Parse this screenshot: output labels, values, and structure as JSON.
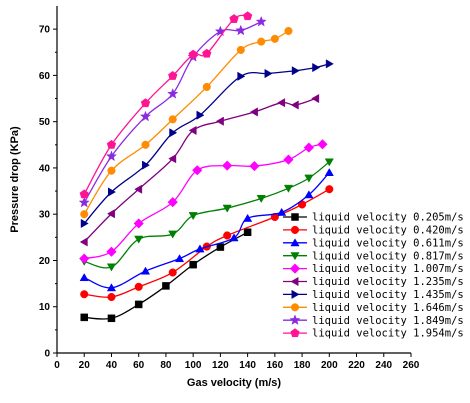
{
  "chart_data": {
    "type": "line",
    "xlabel": "Gas velocity (m/s)",
    "ylabel": "Pressure drop (KPa)",
    "xlim": [
      0,
      260
    ],
    "ylim": [
      0,
      75
    ],
    "xticks": [
      0,
      20,
      40,
      60,
      80,
      100,
      120,
      140,
      160,
      180,
      200,
      220,
      240,
      260
    ],
    "yticks": [
      0,
      10,
      20,
      30,
      40,
      50,
      60,
      70
    ],
    "grid": false,
    "legend_position": "bottom-right",
    "series": [
      {
        "name": "liquid velocity 0.205m/s",
        "marker": "square",
        "color": "#000000",
        "x": [
          20,
          40,
          60,
          80,
          100,
          120,
          140
        ],
        "y": [
          7.7,
          7.5,
          10.5,
          14.5,
          19.1,
          22.9,
          26.1
        ]
      },
      {
        "name": "liquid velocity 0.420m/s",
        "marker": "circle",
        "color": "#ff0000",
        "x": [
          20,
          40,
          60,
          85,
          110,
          125,
          160,
          180,
          200
        ],
        "y": [
          12.7,
          12.1,
          14.3,
          17.4,
          23.0,
          25.4,
          29.4,
          32.1,
          35.4
        ]
      },
      {
        "name": "liquid velocity 0.611m/s",
        "marker": "triangle-up",
        "color": "#0000ff",
        "x": [
          20,
          40,
          65,
          90,
          105,
          130,
          140,
          165,
          185,
          200
        ],
        "y": [
          16.3,
          14.1,
          17.7,
          20.4,
          22.5,
          24.9,
          29.1,
          30.4,
          34.2,
          39.0
        ]
      },
      {
        "name": "liquid velocity 0.817m/s",
        "marker": "triangle-down",
        "color": "#008000",
        "x": [
          20,
          40,
          60,
          85,
          100,
          125,
          150,
          170,
          185,
          200
        ],
        "y": [
          19.8,
          18.6,
          24.6,
          25.7,
          29.7,
          31.3,
          33.4,
          35.6,
          37.8,
          41.3
        ]
      },
      {
        "name": "liquid velocity 1.007m/s",
        "marker": "diamond",
        "color": "#ff00ff",
        "x": [
          20,
          40,
          60,
          85,
          103,
          125,
          145,
          170,
          185,
          195
        ],
        "y": [
          20.4,
          21.9,
          28.0,
          32.6,
          39.5,
          40.5,
          40.4,
          41.8,
          44.4,
          45.1
        ]
      },
      {
        "name": "liquid velocity 1.235m/s",
        "marker": "triangle-left",
        "color": "#800080",
        "x": [
          20,
          40,
          60,
          85,
          100,
          120,
          145,
          165,
          175,
          190
        ],
        "y": [
          24.0,
          30.1,
          35.4,
          42.0,
          48.1,
          50.1,
          52.1,
          54.1,
          53.6,
          55.0
        ]
      },
      {
        "name": "liquid velocity 1.435m/s",
        "marker": "triangle-right",
        "color": "#00008b",
        "x": [
          20,
          40,
          65,
          85,
          105,
          135,
          155,
          175,
          190,
          200
        ],
        "y": [
          28.0,
          34.8,
          40.6,
          47.6,
          51.4,
          59.8,
          60.4,
          61.0,
          61.7,
          62.5
        ]
      },
      {
        "name": "liquid velocity 1.646m/s",
        "marker": "circle",
        "color": "#ff8c00",
        "x": [
          20,
          40,
          65,
          85,
          110,
          135,
          150,
          160,
          170
        ],
        "y": [
          30.0,
          39.4,
          45.0,
          50.5,
          57.5,
          65.5,
          67.3,
          67.9,
          69.6
        ]
      },
      {
        "name": "liquid velocity 1.849m/s",
        "marker": "star",
        "color": "#8a2be2",
        "x": [
          20,
          40,
          65,
          85,
          100,
          120,
          135,
          150
        ],
        "y": [
          32.5,
          42.5,
          51.1,
          56.0,
          64.0,
          69.5,
          69.7,
          71.6
        ]
      },
      {
        "name": "liquid velocity 1.954m/s",
        "marker": "pentagon",
        "color": "#ff1493",
        "x": [
          20,
          40,
          65,
          85,
          100,
          110,
          130,
          140
        ],
        "y": [
          34.3,
          45.0,
          54.0,
          59.9,
          64.5,
          64.7,
          72.2,
          72.8
        ]
      }
    ]
  }
}
